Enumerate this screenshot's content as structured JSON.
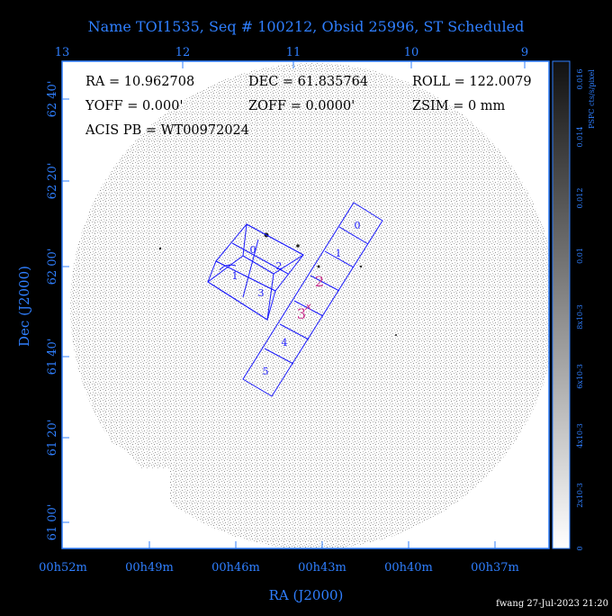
{
  "title": "Name TOI1535, Seq # 100212, Obsid 25996, ST Scheduled",
  "info": {
    "ra": "RA = 10.962708",
    "dec": "DEC = 61.835764",
    "roll": "ROLL = 122.0079",
    "yoff": "YOFF = 0.000'",
    "zoff": "ZOFF = 0.0000'",
    "zsim": "ZSIM = 0 mm",
    "acis": "ACIS PB = WT00972024"
  },
  "footer": "fwang 27-Jul-2023 21:20",
  "colors": {
    "axis": "#2f7fff",
    "chips": "#1a1aff",
    "label_aimpoint": "#c8308a",
    "text": "#000000"
  },
  "chart_data": {
    "type": "image",
    "xlabel": "RA (J2000)",
    "ylabel": "Dec (J2000)",
    "top_ticks": [
      "13",
      "12",
      "11",
      "10",
      "9"
    ],
    "bottom_ticks": [
      "00h52m",
      "00h49m",
      "00h46m",
      "00h43m",
      "00h40m",
      "00h37m"
    ],
    "left_ticks": [
      "62 40'",
      "62 20'",
      "62 00'",
      "61 40'",
      "61 20'",
      "61 00'"
    ],
    "colorbar": {
      "label": "PSPC cts/s/pixel",
      "ticks": [
        "0",
        "2x10-3",
        "4x10-3",
        "6x10-3",
        "8x10-3",
        "0.01",
        "0.012",
        "0.014",
        "0.016"
      ],
      "range": [
        0,
        0.016
      ]
    },
    "chips": [
      "0",
      "1",
      "2",
      "3",
      "4",
      "5",
      "0",
      "1",
      "2",
      "3"
    ],
    "aimpoint_chips": [
      "2",
      "3"
    ]
  }
}
